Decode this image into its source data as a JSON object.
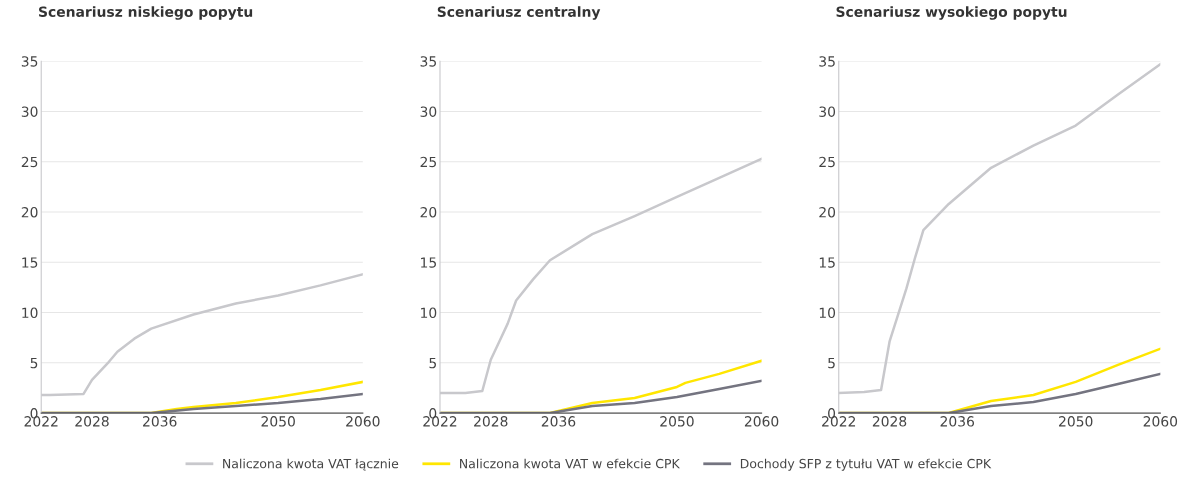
{
  "chart_data": [
    {
      "type": "line",
      "title": "Scenariusz niskiego popytu",
      "xlim": [
        2022,
        2060
      ],
      "xticks": [
        2022,
        2028,
        2036,
        2050,
        2060
      ],
      "ylim": [
        0,
        35
      ],
      "yticks": [
        0,
        5,
        10,
        15,
        20,
        25,
        30,
        35
      ],
      "grid": "y",
      "legend": "bottom",
      "marker": "none",
      "line_style": "solid",
      "series": [
        {
          "name": "Naliczona kwota VAT łącznie",
          "color": "#c8c8cc",
          "x": [
            2022,
            2023,
            2027,
            2028,
            2030,
            2031,
            2033,
            2035,
            2040,
            2045,
            2050,
            2055,
            2060
          ],
          "values": [
            1.8,
            1.8,
            1.9,
            3.3,
            5.1,
            6.1,
            7.4,
            8.4,
            9.8,
            10.9,
            11.7,
            12.7,
            13.8
          ]
        },
        {
          "name": "Naliczona kwota VAT w efekcie CPK",
          "color": "#ffe600",
          "x": [
            2022,
            2035,
            2038,
            2040,
            2045,
            2050,
            2055,
            2060
          ],
          "values": [
            0,
            0,
            0.4,
            0.6,
            1.0,
            1.6,
            2.3,
            3.1
          ]
        },
        {
          "name": "Dochody SFP z tytułu VAT w efekcie CPK",
          "color": "#747480",
          "x": [
            2022,
            2035,
            2040,
            2045,
            2050,
            2055,
            2060
          ],
          "values": [
            0,
            0,
            0.4,
            0.7,
            1.0,
            1.4,
            1.9
          ]
        }
      ]
    },
    {
      "type": "line",
      "title": "Scenariusz centralny",
      "xlim": [
        2022,
        2060
      ],
      "xticks": [
        2022,
        2028,
        2036,
        2050,
        2060
      ],
      "ylim": [
        0,
        35
      ],
      "yticks": [
        0,
        5,
        10,
        15,
        20,
        25,
        30,
        35
      ],
      "grid": "y",
      "marker": "none",
      "line_style": "solid",
      "series": [
        {
          "color": "#c8c8cc",
          "x": [
            2022,
            2025,
            2027,
            2028,
            2029,
            2030,
            2031,
            2033,
            2035,
            2040,
            2045,
            2050,
            2055,
            2060
          ],
          "values": [
            2.0,
            2.0,
            2.2,
            5.3,
            7.1,
            8.9,
            11.2,
            13.3,
            15.2,
            17.8,
            19.6,
            21.5,
            23.4,
            25.3
          ]
        },
        {
          "color": "#ffe600",
          "x": [
            2022,
            2035,
            2040,
            2045,
            2050,
            2051,
            2055,
            2060
          ],
          "values": [
            0,
            0,
            1.0,
            1.5,
            2.6,
            3.0,
            3.9,
            5.2
          ]
        },
        {
          "color": "#747480",
          "x": [
            2022,
            2035,
            2040,
            2045,
            2050,
            2055,
            2060
          ],
          "values": [
            0,
            0,
            0.7,
            1.0,
            1.6,
            2.4,
            3.2
          ]
        }
      ]
    },
    {
      "type": "line",
      "title": "Scenariusz wysokiego popytu",
      "xlim": [
        2022,
        2060
      ],
      "xticks": [
        2022,
        2028,
        2036,
        2050,
        2060
      ],
      "ylim": [
        0,
        35
      ],
      "yticks": [
        0,
        5,
        10,
        15,
        20,
        25,
        30,
        35
      ],
      "grid": "y",
      "marker": "none",
      "line_style": "solid",
      "series": [
        {
          "color": "#c8c8cc",
          "x": [
            2022,
            2025,
            2027,
            2028,
            2030,
            2031,
            2032,
            2035,
            2040,
            2045,
            2050,
            2055,
            2060
          ],
          "values": [
            2.0,
            2.1,
            2.3,
            7.1,
            12.4,
            15.4,
            18.2,
            20.8,
            24.4,
            26.6,
            28.6,
            31.7,
            34.7
          ]
        },
        {
          "color": "#ffe600",
          "x": [
            2022,
            2035,
            2040,
            2045,
            2050,
            2055,
            2060
          ],
          "values": [
            0,
            0,
            1.2,
            1.8,
            3.1,
            4.8,
            6.4
          ]
        },
        {
          "color": "#747480",
          "x": [
            2022,
            2035,
            2040,
            2045,
            2050,
            2055,
            2060
          ],
          "values": [
            0,
            0,
            0.7,
            1.1,
            1.9,
            2.9,
            3.9
          ]
        }
      ]
    }
  ]
}
